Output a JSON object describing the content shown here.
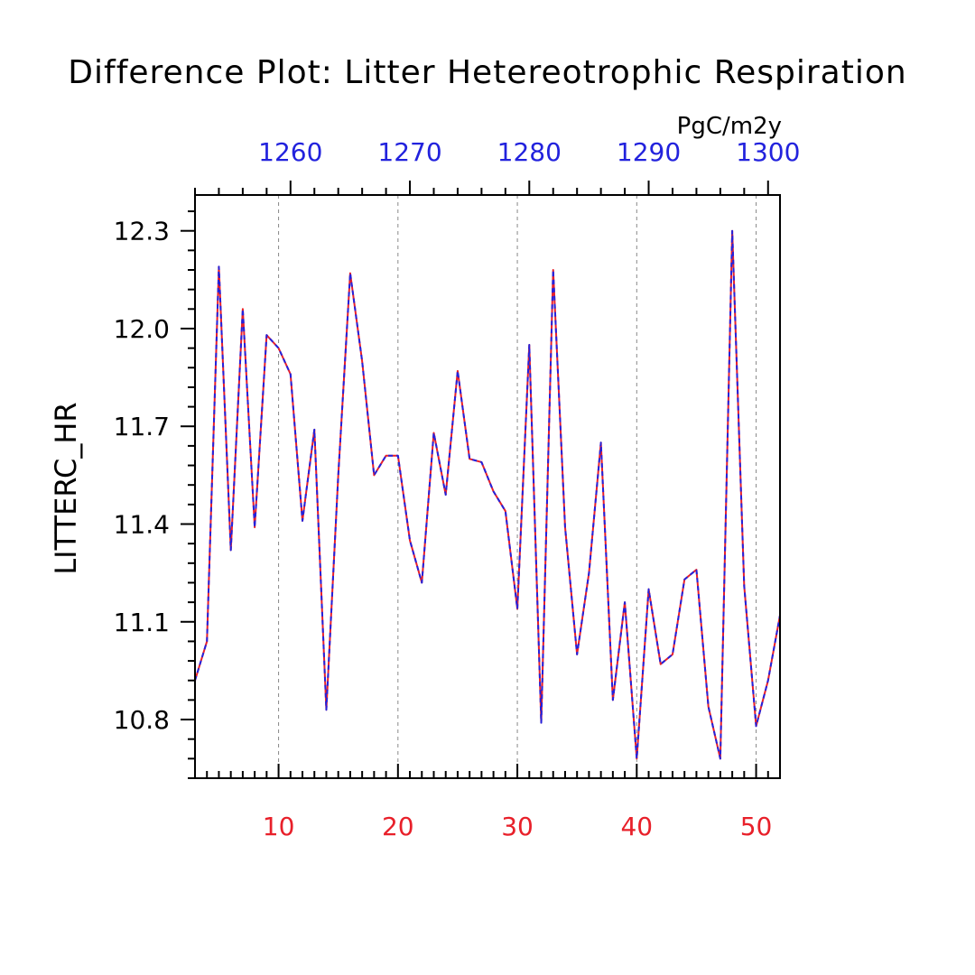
{
  "chart_data": {
    "type": "line",
    "title": "Difference Plot: Litter Hetereotrophic Respiration",
    "units": "PgC/m2y",
    "ylabel": "LITTERC_HR",
    "xlim": [
      3,
      52
    ],
    "ylim": [
      10.62,
      12.41
    ],
    "top_xlim": [
      1252,
      1301
    ],
    "bottom_ticks": [
      "10",
      "20",
      "30",
      "40",
      "50"
    ],
    "bottom_tick_values": [
      10,
      20,
      30,
      40,
      50
    ],
    "top_ticks": [
      "1260",
      "1270",
      "1280",
      "1290",
      "1300"
    ],
    "top_tick_values": [
      1260,
      1270,
      1280,
      1290,
      1300
    ],
    "y_ticks": [
      "10.8",
      "11.1",
      "11.4",
      "11.7",
      "12.0",
      "12.3"
    ],
    "y_tick_values": [
      10.8,
      11.1,
      11.4,
      11.7,
      12.0,
      12.3
    ],
    "grid": "vertical dashed at major x ticks",
    "x": [
      3,
      4,
      5,
      6,
      7,
      8,
      9,
      10,
      11,
      12,
      13,
      14,
      15,
      16,
      17,
      18,
      19,
      20,
      21,
      22,
      23,
      24,
      25,
      26,
      27,
      28,
      29,
      30,
      31,
      32,
      33,
      34,
      35,
      36,
      37,
      38,
      39,
      40,
      41,
      42,
      43,
      44,
      45,
      46,
      47,
      48,
      49,
      50,
      51,
      52
    ],
    "series": [
      {
        "color": "#e8202a",
        "style": "solid",
        "values": [
          10.92,
          11.04,
          12.19,
          11.32,
          12.06,
          11.39,
          11.98,
          11.94,
          11.86,
          11.41,
          11.69,
          10.83,
          11.55,
          12.17,
          11.9,
          11.55,
          11.61,
          11.61,
          11.35,
          11.22,
          11.68,
          11.49,
          11.87,
          11.6,
          11.59,
          11.5,
          11.44,
          11.14,
          11.95,
          10.79,
          12.18,
          11.39,
          11.0,
          11.25,
          11.65,
          10.86,
          11.16,
          10.68,
          11.2,
          10.97,
          11.0,
          11.23,
          11.26,
          10.84,
          10.68,
          12.3,
          11.21,
          10.78,
          10.92,
          11.12
        ]
      },
      {
        "color": "#2222dd",
        "style": "dashed",
        "values": [
          10.92,
          11.04,
          12.19,
          11.32,
          12.06,
          11.39,
          11.98,
          11.94,
          11.86,
          11.41,
          11.69,
          10.83,
          11.55,
          12.17,
          11.9,
          11.55,
          11.61,
          11.61,
          11.35,
          11.22,
          11.68,
          11.49,
          11.87,
          11.6,
          11.59,
          11.5,
          11.44,
          11.14,
          11.95,
          10.79,
          12.18,
          11.39,
          11.0,
          11.25,
          11.65,
          10.86,
          11.16,
          10.68,
          11.2,
          10.97,
          11.0,
          11.23,
          11.26,
          10.84,
          10.68,
          12.3,
          11.21,
          10.78,
          10.92,
          11.12
        ]
      }
    ]
  }
}
